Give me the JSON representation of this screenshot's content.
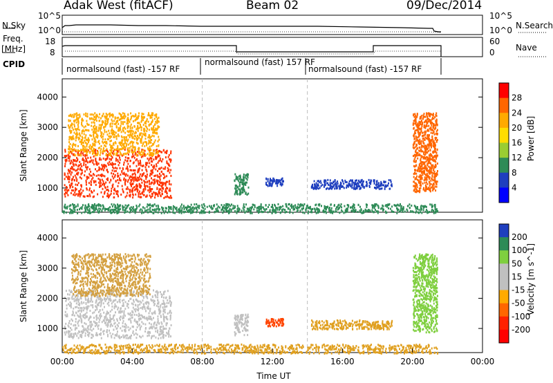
{
  "header": {
    "site": "Adak West (fitACF)",
    "beam": "Beam 02",
    "date": "09/Dec/2014"
  },
  "top_panels": {
    "nsky_label": "N.Sky",
    "nsky_ticks": [
      "10^5",
      "10^0"
    ],
    "nsearch_label": "N.Search",
    "freq_label": "Freq.",
    "freq_unit": "[MHz]",
    "freq_ticks": [
      "18",
      "8"
    ],
    "nave_ticks": [
      "60",
      "0"
    ],
    "nave_label": "Nave",
    "cpid_label": "CPID",
    "cpid_segments": [
      {
        "text": "normalsound (fast) -157 RF",
        "start_h": 0,
        "end_h": 8
      },
      {
        "text": "normalsound (fast) 157 RF",
        "start_h": 8,
        "end_h": 14
      },
      {
        "text": "normalsound (fast) -157 RF",
        "start_h": 14,
        "end_h": 21.8
      }
    ]
  },
  "chart_data": [
    {
      "type": "heatmap",
      "name": "power",
      "ylabel": "Slant Range [km]",
      "yticks": [
        1000,
        2000,
        3000,
        4000
      ],
      "ylim": [
        200,
        4600
      ],
      "xlim": [
        0,
        24
      ],
      "colorbar": {
        "label": "Power [dB]",
        "ticks": [
          "28",
          "24",
          "20",
          "16",
          "12",
          "8",
          "4"
        ],
        "colors": [
          "#ff0000",
          "#ff6600",
          "#ffaa00",
          "#ffdd00",
          "#9acd32",
          "#2e8b57",
          "#1f3fbf",
          "#0000ff"
        ]
      },
      "regions": [
        {
          "x": [
            0.1,
            6.2
          ],
          "y": [
            700,
            2300
          ],
          "color": "#ff3300"
        },
        {
          "x": [
            0.3,
            5.5
          ],
          "y": [
            2100,
            3500
          ],
          "color": "#ffaa00"
        },
        {
          "x": [
            9.8,
            10.6
          ],
          "y": [
            800,
            1500
          ],
          "color": "#2e8b57"
        },
        {
          "x": [
            11.6,
            12.6
          ],
          "y": [
            1100,
            1350
          ],
          "color": "#1f3fbf"
        },
        {
          "x": [
            14.2,
            18.8
          ],
          "y": [
            1000,
            1300
          ],
          "color": "#1f3fbf"
        },
        {
          "x": [
            20.0,
            21.4
          ],
          "y": [
            900,
            3500
          ],
          "color": "#ff6600"
        },
        {
          "x": [
            0.0,
            21.4
          ],
          "y": [
            200,
            500
          ],
          "color": "#2e8b57"
        }
      ]
    },
    {
      "type": "heatmap",
      "name": "velocity",
      "ylabel": "Slant Range [km]",
      "yticks": [
        1000,
        2000,
        3000,
        4000
      ],
      "ylim": [
        200,
        4600
      ],
      "xlim": [
        0,
        24
      ],
      "colorbar": {
        "label": "Velocity [m s^-1]",
        "ticks": [
          "200",
          "100",
          "50",
          "15",
          "-15",
          "-50",
          "-100",
          "-200"
        ],
        "colors": [
          "#1f3fbf",
          "#2e8b57",
          "#7fcf3f",
          "#c0c0c0",
          "#c0c0c0",
          "#ffaa00",
          "#ff6600",
          "#ff2200",
          "#ff0000"
        ]
      },
      "regions": [
        {
          "x": [
            0.1,
            6.2
          ],
          "y": [
            700,
            2300
          ],
          "color": "#c0c0c0"
        },
        {
          "x": [
            0.5,
            5.0
          ],
          "y": [
            2100,
            3500
          ],
          "color": "#d4a040"
        },
        {
          "x": [
            9.8,
            10.6
          ],
          "y": [
            800,
            1500
          ],
          "color": "#c0c0c0"
        },
        {
          "x": [
            11.6,
            12.6
          ],
          "y": [
            1100,
            1350
          ],
          "color": "#ff4400"
        },
        {
          "x": [
            14.2,
            18.8
          ],
          "y": [
            1000,
            1300
          ],
          "color": "#e0a020"
        },
        {
          "x": [
            20.0,
            21.4
          ],
          "y": [
            900,
            3500
          ],
          "color": "#7fcf3f"
        },
        {
          "x": [
            0.0,
            21.4
          ],
          "y": [
            200,
            500
          ],
          "color": "#e0a020"
        }
      ]
    }
  ],
  "xaxis": {
    "ticks": [
      "00:00",
      "04:00",
      "08:00",
      "12:00",
      "16:00",
      "20:00",
      "00:00"
    ],
    "label": "Time UT"
  }
}
